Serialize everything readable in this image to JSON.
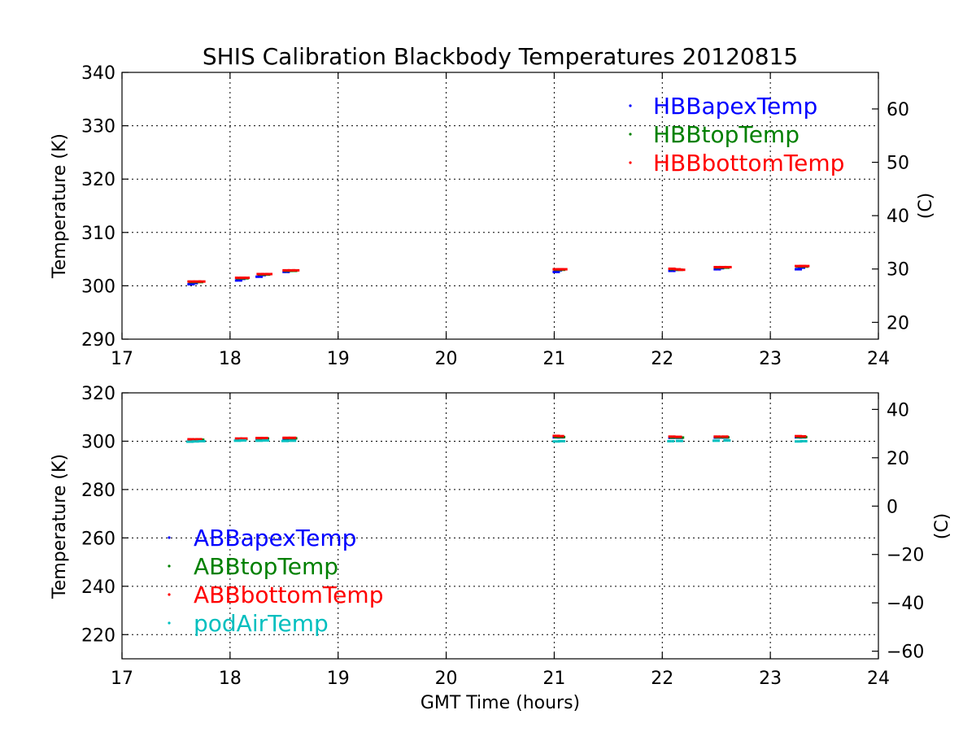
{
  "chart_data": [
    {
      "type": "scatter",
      "title": "SHIS Calibration Blackbody Temperatures 20120815",
      "xlabel": "",
      "ylabel": "Temperature (K)",
      "ylabel_right": "(C)",
      "xlim": [
        17,
        24
      ],
      "ylim": [
        290,
        340
      ],
      "xticks": [
        17,
        18,
        19,
        20,
        21,
        22,
        23,
        24
      ],
      "yticks": [
        290,
        300,
        310,
        320,
        330,
        340
      ],
      "yticks_right": [
        20,
        30,
        40,
        50,
        60
      ],
      "grid": true,
      "legend_position": "top-right",
      "series": [
        {
          "name": "HBBapexTemp",
          "color": "#0000ff",
          "points": [
            [
              17.62,
              300.3
            ],
            [
              17.65,
              300.5
            ],
            [
              18.06,
              301.0
            ],
            [
              18.09,
              301.3
            ],
            [
              18.25,
              301.7
            ],
            [
              18.28,
              302.0
            ],
            [
              18.5,
              302.6
            ],
            [
              18.53,
              302.8
            ],
            [
              21.0,
              302.6
            ],
            [
              21.02,
              302.9
            ],
            [
              22.07,
              302.8
            ],
            [
              22.1,
              303.0
            ],
            [
              22.49,
              303.1
            ],
            [
              22.52,
              303.3
            ],
            [
              23.24,
              303.1
            ],
            [
              23.27,
              303.4
            ]
          ]
        },
        {
          "name": "HBBtopTemp",
          "color": "#008000",
          "points": [
            [
              17.63,
              300.7
            ],
            [
              17.7,
              300.7
            ],
            [
              18.07,
              301.4
            ],
            [
              18.12,
              301.4
            ],
            [
              18.27,
              302.1
            ],
            [
              18.32,
              302.1
            ],
            [
              18.51,
              302.8
            ],
            [
              18.57,
              302.8
            ],
            [
              21.01,
              303.0
            ],
            [
              21.05,
              303.0
            ],
            [
              22.08,
              303.1
            ],
            [
              22.14,
              303.0
            ],
            [
              22.5,
              303.4
            ],
            [
              22.57,
              303.4
            ],
            [
              23.25,
              303.6
            ],
            [
              23.3,
              303.6
            ]
          ]
        },
        {
          "name": "HBBbottomTemp",
          "color": "#ff0000",
          "points": [
            [
              17.62,
              300.8
            ],
            [
              17.68,
              300.8
            ],
            [
              17.72,
              300.8
            ],
            [
              18.06,
              301.5
            ],
            [
              18.1,
              301.5
            ],
            [
              18.13,
              301.5
            ],
            [
              18.26,
              302.2
            ],
            [
              18.3,
              302.2
            ],
            [
              18.34,
              302.2
            ],
            [
              18.5,
              302.9
            ],
            [
              18.55,
              302.9
            ],
            [
              18.59,
              302.9
            ],
            [
              21.0,
              303.1
            ],
            [
              21.04,
              303.1
            ],
            [
              21.07,
              303.1
            ],
            [
              22.07,
              303.2
            ],
            [
              22.12,
              303.1
            ],
            [
              22.16,
              303.0
            ],
            [
              22.49,
              303.5
            ],
            [
              22.54,
              303.5
            ],
            [
              22.59,
              303.5
            ],
            [
              23.24,
              303.7
            ],
            [
              23.28,
              303.7
            ],
            [
              23.31,
              303.7
            ]
          ]
        }
      ]
    },
    {
      "type": "scatter",
      "title": "",
      "xlabel": "GMT Time (hours)",
      "ylabel": "Temperature (K)",
      "ylabel_right": "(C)",
      "xlim": [
        17,
        24
      ],
      "ylim": [
        210,
        320
      ],
      "xticks": [
        17,
        18,
        19,
        20,
        21,
        22,
        23,
        24
      ],
      "yticks": [
        220,
        240,
        260,
        280,
        300,
        320
      ],
      "yticks_right": [
        40,
        20,
        0,
        -20,
        -40,
        -60
      ],
      "yticks_right_labels": [
        "40",
        "20",
        "0",
        "−20",
        "−40",
        "−60"
      ],
      "grid": true,
      "legend_position": "bottom-left",
      "series": [
        {
          "name": "ABBapexTemp",
          "color": "#0000ff",
          "points": [
            [
              17.62,
              300.4
            ],
            [
              17.7,
              300.5
            ],
            [
              18.06,
              300.8
            ],
            [
              18.1,
              300.8
            ],
            [
              18.25,
              301.0
            ],
            [
              18.3,
              301.0
            ],
            [
              18.5,
              301.0
            ],
            [
              18.56,
              301.1
            ],
            [
              21.0,
              301.6
            ],
            [
              21.04,
              301.6
            ],
            [
              22.07,
              301.4
            ],
            [
              22.14,
              301.4
            ],
            [
              22.49,
              301.5
            ],
            [
              22.56,
              301.5
            ],
            [
              23.24,
              301.6
            ],
            [
              23.28,
              301.6
            ]
          ]
        },
        {
          "name": "ABBtopTemp",
          "color": "#008000",
          "points": [
            [
              17.63,
              300.6
            ],
            [
              17.71,
              300.6
            ],
            [
              18.07,
              300.9
            ],
            [
              18.11,
              300.9
            ],
            [
              18.26,
              301.1
            ],
            [
              18.31,
              301.1
            ],
            [
              18.51,
              301.2
            ],
            [
              18.57,
              301.2
            ],
            [
              21.01,
              301.7
            ],
            [
              21.05,
              301.7
            ],
            [
              22.08,
              301.5
            ],
            [
              22.15,
              301.5
            ],
            [
              22.5,
              301.6
            ],
            [
              22.57,
              301.6
            ],
            [
              23.25,
              301.7
            ],
            [
              23.29,
              301.7
            ]
          ]
        },
        {
          "name": "ABBbottomTemp",
          "color": "#ff0000",
          "points": [
            [
              17.62,
              300.8
            ],
            [
              17.69,
              300.8
            ],
            [
              18.06,
              301.1
            ],
            [
              18.11,
              301.1
            ],
            [
              18.25,
              301.3
            ],
            [
              18.3,
              301.3
            ],
            [
              18.5,
              301.4
            ],
            [
              18.56,
              301.4
            ],
            [
              21.0,
              302.2
            ],
            [
              21.04,
              302.1
            ],
            [
              22.07,
              301.9
            ],
            [
              22.13,
              301.8
            ],
            [
              22.49,
              301.9
            ],
            [
              22.56,
              301.9
            ],
            [
              23.24,
              302.1
            ],
            [
              23.28,
              302.0
            ]
          ]
        },
        {
          "name": "podAirTemp",
          "color": "#00bfbf",
          "points": [
            [
              17.61,
              299.8
            ],
            [
              17.66,
              299.9
            ],
            [
              17.72,
              300.0
            ],
            [
              18.05,
              300.2
            ],
            [
              18.1,
              300.3
            ],
            [
              18.25,
              300.2
            ],
            [
              18.31,
              300.3
            ],
            [
              18.49,
              300.1
            ],
            [
              18.56,
              300.2
            ],
            [
              21.0,
              299.9
            ],
            [
              21.05,
              300.0
            ],
            [
              22.06,
              300.0
            ],
            [
              22.14,
              300.1
            ],
            [
              22.48,
              300.2
            ],
            [
              22.58,
              300.3
            ],
            [
              23.24,
              299.9
            ],
            [
              23.29,
              300.0
            ]
          ]
        }
      ]
    }
  ]
}
